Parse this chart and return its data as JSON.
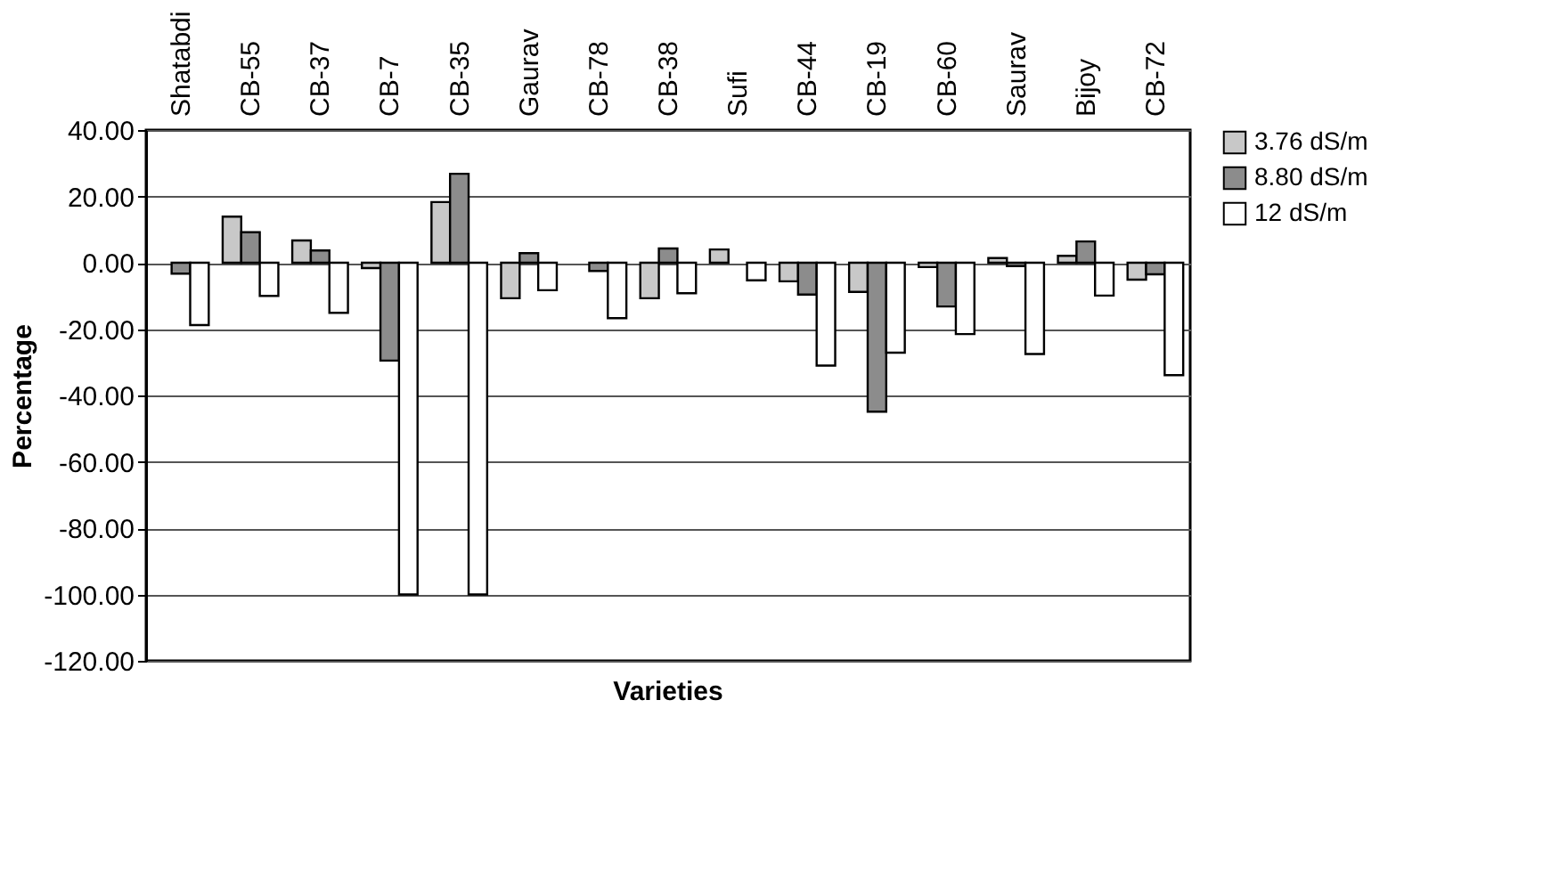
{
  "chart_data": {
    "type": "bar",
    "xlabel": "Varieties",
    "ylabel": "Percentage",
    "categories": [
      "Shatabdi",
      "CB-55",
      "CB-37",
      "CB-7",
      "CB-35",
      "Gaurav",
      "CB-78",
      "CB-38",
      "Sufi",
      "CB-44",
      "CB-19",
      "CB-60",
      "Saurav",
      "Bijoy",
      "CB-72"
    ],
    "series": [
      {
        "name": "3.76 dS/m",
        "color": "#c8c8c8",
        "values": [
          null,
          13.9,
          6.7,
          -1.6,
          18.3,
          -10.7,
          null,
          -10.7,
          4.0,
          -5.6,
          -8.8,
          -1.3,
          1.4,
          2.1,
          -5.1
        ]
      },
      {
        "name": "8.80 dS/m",
        "color": "#8c8c8c",
        "values": [
          -3.3,
          9.2,
          3.7,
          -29.5,
          26.8,
          2.9,
          -2.5,
          4.3,
          null,
          -9.6,
          -44.9,
          -13.2,
          -1.0,
          6.4,
          -3.5
        ]
      },
      {
        "name": "12 dS/m",
        "color": "#ffffff",
        "values": [
          -18.8,
          -10.0,
          -15.1,
          -100,
          -100,
          -8.3,
          -16.7,
          -9.2,
          -5.3,
          -31,
          -27.1,
          -21.5,
          -27.5,
          -9.9,
          -33.9
        ]
      }
    ],
    "ylim": [
      -120,
      40
    ],
    "yticks": [
      {
        "value": -120,
        "label": "-120.00"
      },
      {
        "value": -100,
        "label": "-100.00"
      },
      {
        "value": -80,
        "label": "-80.00"
      },
      {
        "value": -60,
        "label": "-60.00"
      },
      {
        "value": -40,
        "label": "-40.00"
      },
      {
        "value": -20,
        "label": "-20.00"
      },
      {
        "value": 0,
        "label": "0.00"
      },
      {
        "value": 20,
        "label": "20.00"
      },
      {
        "value": 40,
        "label": "40.00"
      }
    ],
    "grid": "y",
    "legend": "right"
  }
}
